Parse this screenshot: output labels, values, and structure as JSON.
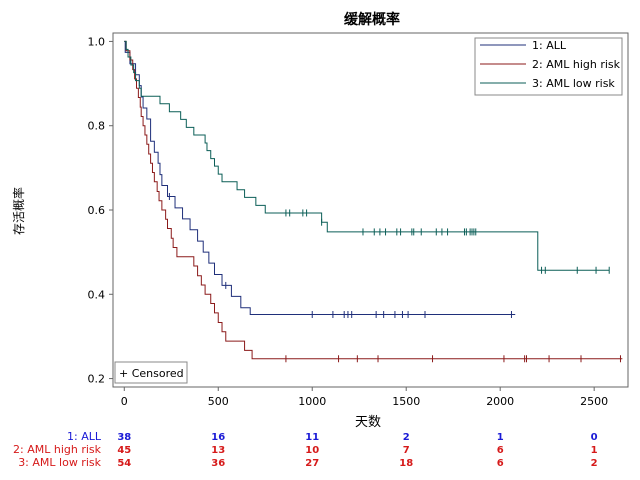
{
  "chart_data": {
    "type": "line",
    "subtype": "kaplan-meier-step",
    "title": "缓解概率",
    "xlabel": "天数",
    "ylabel": "存活概率",
    "xlim": [
      -60,
      2680
    ],
    "ylim": [
      0.18,
      1.02
    ],
    "x_ticks": [
      0,
      500,
      1000,
      1500,
      2000,
      2500
    ],
    "y_ticks": [
      0.2,
      0.4,
      0.6,
      0.8,
      1.0
    ],
    "grid": false,
    "legend_position": "top-right",
    "censored_legend": "+ Censored",
    "series": [
      {
        "name": "1: ALL",
        "color": "#1f2f7a",
        "points": [
          [
            0,
            1.0
          ],
          [
            5,
            0.974
          ],
          [
            30,
            0.947
          ],
          [
            60,
            0.921
          ],
          [
            80,
            0.895
          ],
          [
            90,
            0.868
          ],
          [
            100,
            0.842
          ],
          [
            120,
            0.816
          ],
          [
            140,
            0.763
          ],
          [
            160,
            0.737
          ],
          [
            180,
            0.711
          ],
          [
            190,
            0.684
          ],
          [
            200,
            0.658
          ],
          [
            230,
            0.632
          ],
          [
            270,
            0.605
          ],
          [
            310,
            0.579
          ],
          [
            350,
            0.553
          ],
          [
            390,
            0.526
          ],
          [
            420,
            0.5
          ],
          [
            450,
            0.474
          ],
          [
            480,
            0.447
          ],
          [
            520,
            0.421
          ],
          [
            570,
            0.395
          ],
          [
            620,
            0.368
          ],
          [
            670,
            0.352
          ],
          [
            2080,
            0.352
          ]
        ],
        "censored": [
          240,
          540,
          1000,
          1110,
          1170,
          1190,
          1210,
          1340,
          1380,
          1440,
          1480,
          1510,
          1600,
          2060
        ]
      },
      {
        "name": "2: AML high risk",
        "color": "#8b1a1a",
        "points": [
          [
            0,
            1.0
          ],
          [
            10,
            0.978
          ],
          [
            30,
            0.956
          ],
          [
            45,
            0.933
          ],
          [
            55,
            0.911
          ],
          [
            65,
            0.889
          ],
          [
            75,
            0.867
          ],
          [
            85,
            0.844
          ],
          [
            90,
            0.822
          ],
          [
            100,
            0.8
          ],
          [
            110,
            0.778
          ],
          [
            120,
            0.756
          ],
          [
            130,
            0.733
          ],
          [
            140,
            0.711
          ],
          [
            150,
            0.689
          ],
          [
            160,
            0.667
          ],
          [
            175,
            0.644
          ],
          [
            185,
            0.622
          ],
          [
            200,
            0.6
          ],
          [
            220,
            0.578
          ],
          [
            230,
            0.556
          ],
          [
            250,
            0.533
          ],
          [
            260,
            0.511
          ],
          [
            280,
            0.489
          ],
          [
            370,
            0.467
          ],
          [
            390,
            0.444
          ],
          [
            410,
            0.422
          ],
          [
            430,
            0.4
          ],
          [
            460,
            0.378
          ],
          [
            480,
            0.356
          ],
          [
            500,
            0.333
          ],
          [
            520,
            0.311
          ],
          [
            540,
            0.289
          ],
          [
            640,
            0.267
          ],
          [
            680,
            0.247
          ],
          [
            2650,
            0.247
          ]
        ],
        "censored": [
          860,
          1140,
          1240,
          1350,
          1640,
          2020,
          2130,
          2140,
          2260,
          2430,
          2640
        ]
      },
      {
        "name": "3: AML low risk",
        "color": "#0b5e57",
        "points": [
          [
            0,
            1.0
          ],
          [
            10,
            0.981
          ],
          [
            20,
            0.963
          ],
          [
            35,
            0.944
          ],
          [
            50,
            0.926
          ],
          [
            60,
            0.907
          ],
          [
            80,
            0.889
          ],
          [
            90,
            0.87
          ],
          [
            190,
            0.852
          ],
          [
            240,
            0.833
          ],
          [
            300,
            0.815
          ],
          [
            330,
            0.796
          ],
          [
            370,
            0.778
          ],
          [
            430,
            0.759
          ],
          [
            440,
            0.741
          ],
          [
            460,
            0.722
          ],
          [
            480,
            0.704
          ],
          [
            500,
            0.685
          ],
          [
            520,
            0.667
          ],
          [
            600,
            0.648
          ],
          [
            640,
            0.63
          ],
          [
            700,
            0.611
          ],
          [
            750,
            0.593
          ],
          [
            1050,
            0.571
          ],
          [
            1080,
            0.548
          ],
          [
            2200,
            0.457
          ],
          [
            2580,
            0.457
          ]
        ],
        "censored": [
          860,
          880,
          950,
          970,
          1050,
          1270,
          1330,
          1360,
          1390,
          1450,
          1470,
          1530,
          1540,
          1580,
          1660,
          1690,
          1720,
          1810,
          1820,
          1840,
          1850,
          1860,
          1870,
          2220,
          2240,
          2410,
          2510,
          2580
        ]
      }
    ],
    "at_risk": {
      "times": [
        0,
        500,
        1000,
        1500,
        2000,
        2500
      ],
      "rows": [
        {
          "label": "1: ALL",
          "color": "#1a1ad6",
          "counts": [
            "38",
            "16",
            "11",
            "2",
            "1",
            "0"
          ]
        },
        {
          "label": "2: AML high risk",
          "color": "#d61a1a",
          "counts": [
            "45",
            "13",
            "10",
            "7",
            "6",
            "1"
          ]
        },
        {
          "label": "3: AML low risk",
          "color": "#d61a1a",
          "counts": [
            "54",
            "36",
            "27",
            "18",
            "6",
            "2"
          ]
        }
      ]
    }
  }
}
